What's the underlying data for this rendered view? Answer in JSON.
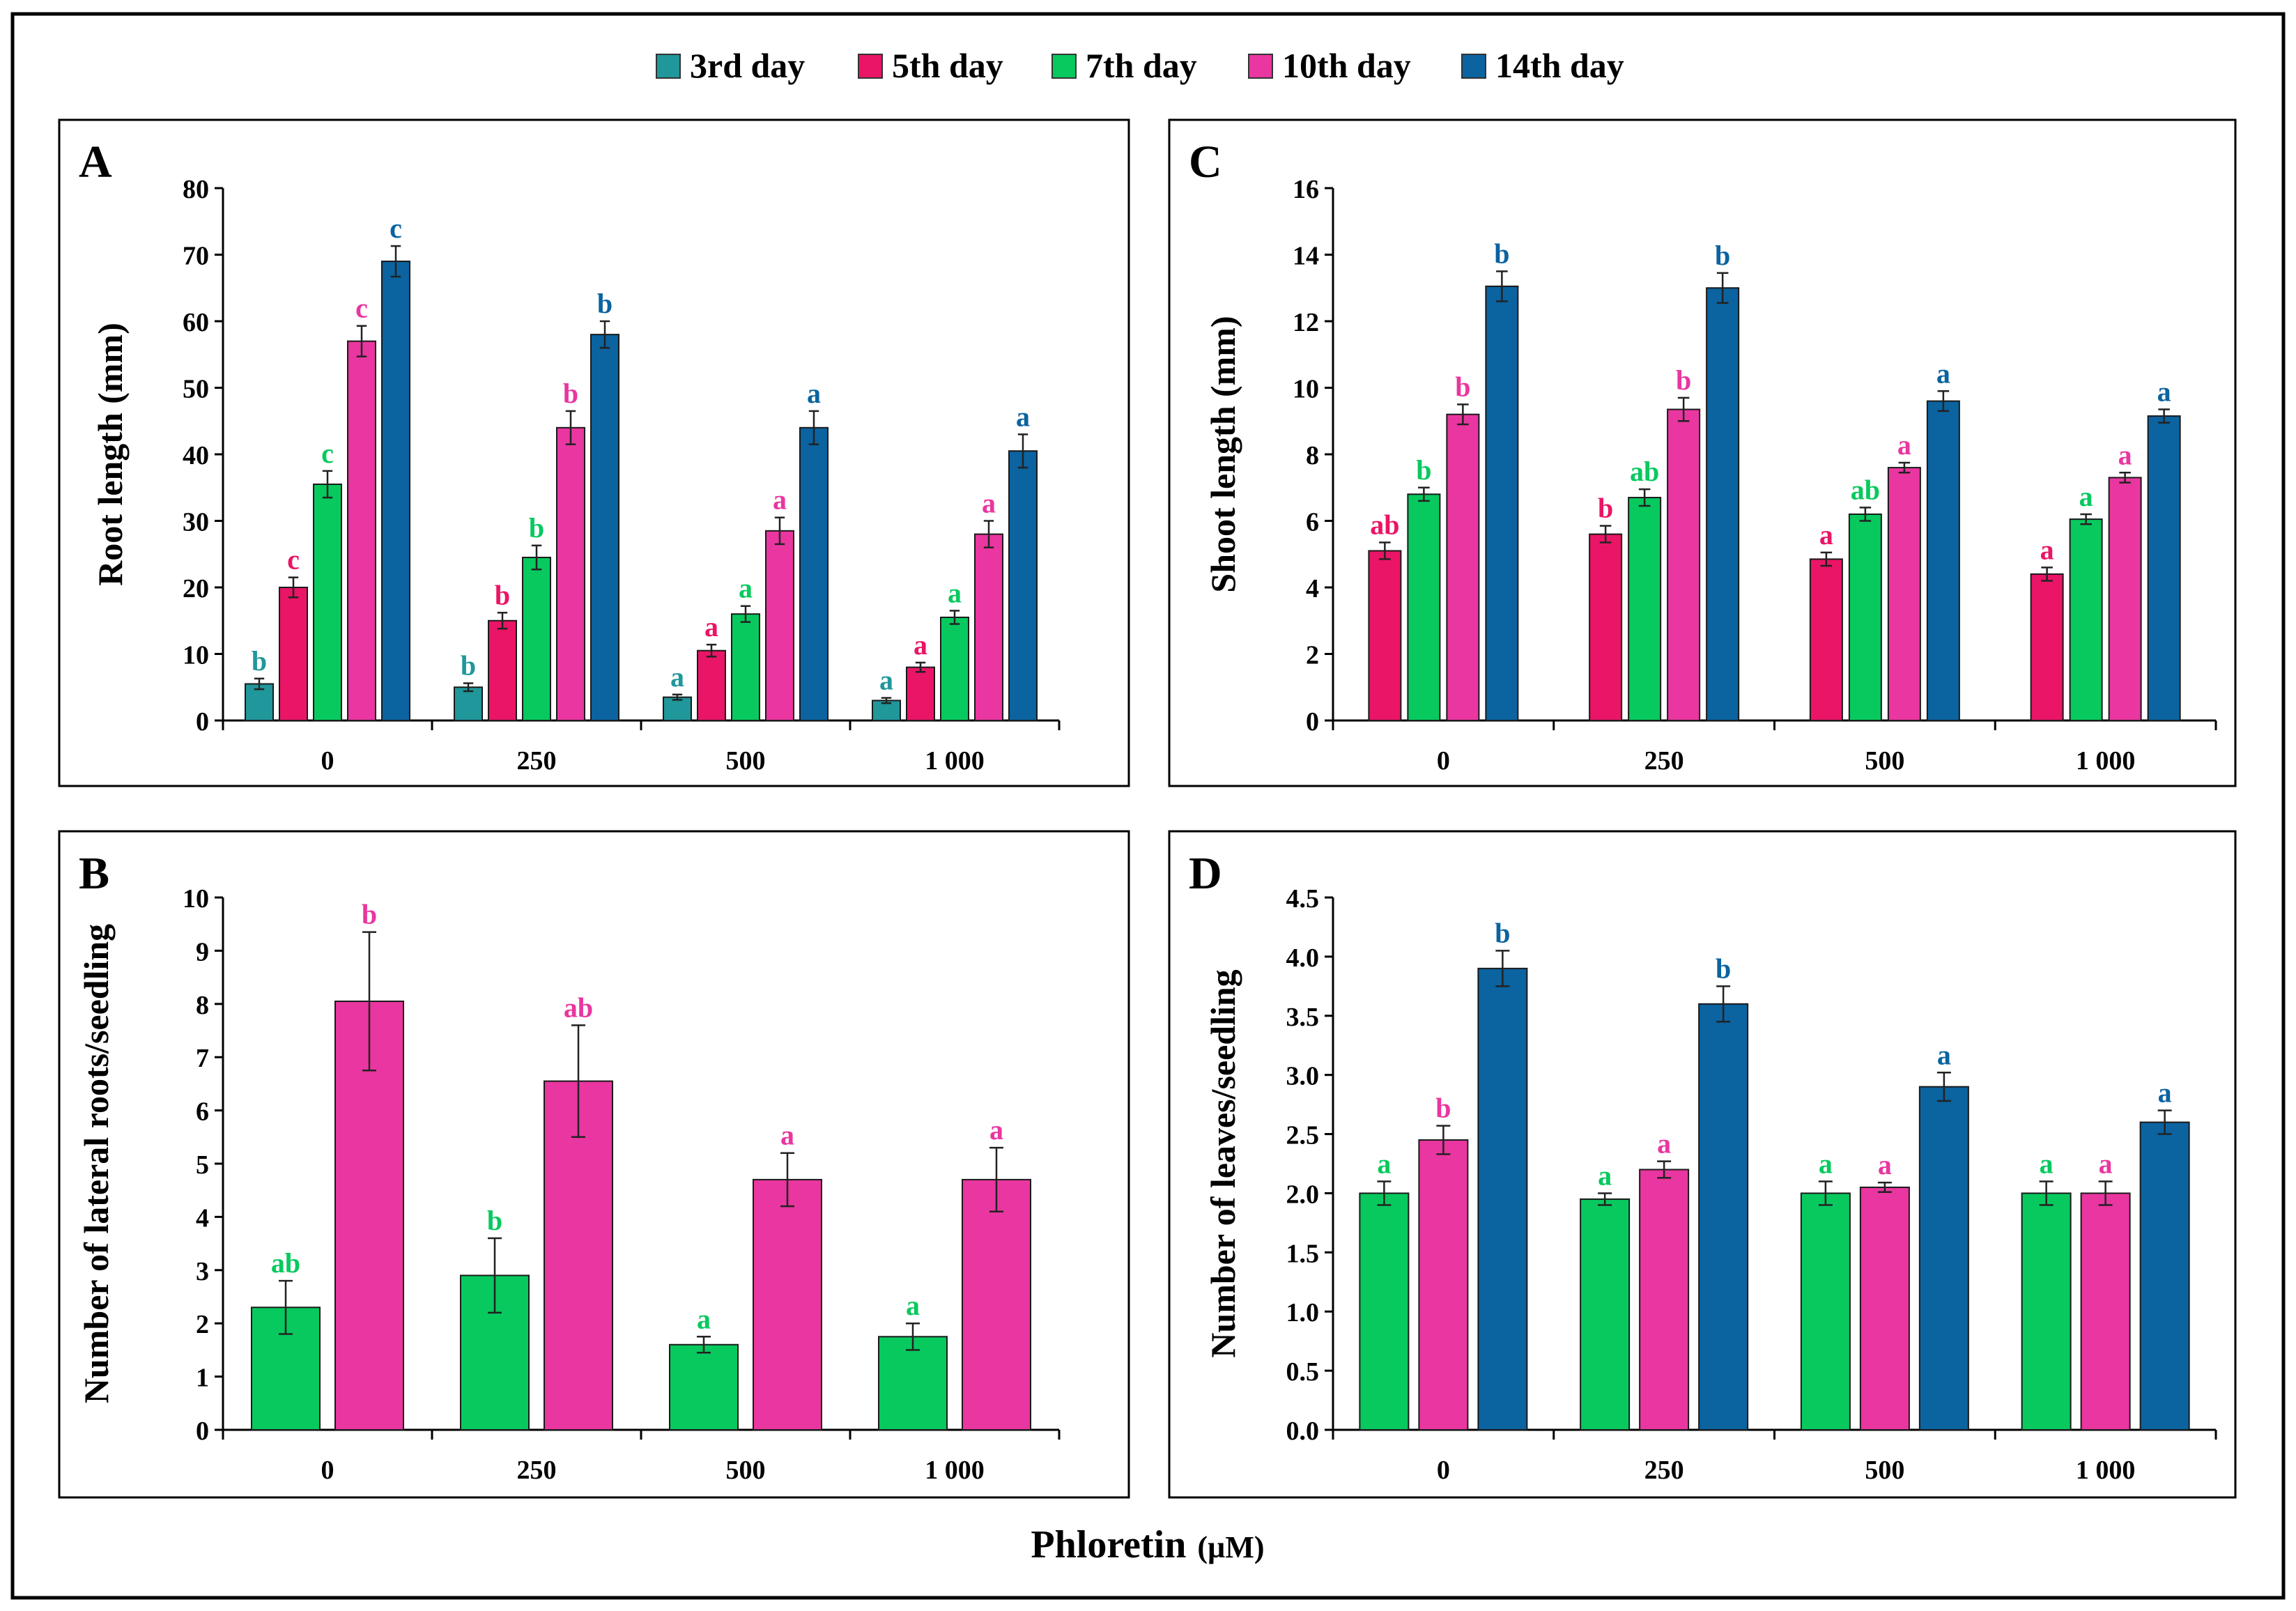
{
  "figure": {
    "xlabel_main": "Phloretin",
    "xlabel_unit": "(µM)"
  },
  "legend": [
    {
      "label": "3rd day",
      "color": "#20979b"
    },
    {
      "label": "5th day",
      "color": "#ea1566"
    },
    {
      "label": "7th day",
      "color": "#08c95e"
    },
    {
      "label": "10th day",
      "color": "#ea36a0"
    },
    {
      "label": "14th day",
      "color": "#0b63a0"
    }
  ],
  "chart_data": [
    {
      "panel": "A",
      "type": "bar",
      "ylabel": "Root length (mm)",
      "ylim": [
        0,
        80
      ],
      "yticks": [
        0,
        10,
        20,
        30,
        40,
        50,
        60,
        70,
        80
      ],
      "ytick_labels": [
        "0",
        "10",
        "20",
        "30",
        "40",
        "50",
        "60",
        "70",
        "80"
      ],
      "categories": [
        "0",
        "250",
        "500",
        "1 000"
      ],
      "series": [
        {
          "name": "3rd day",
          "color": "#20979b",
          "values": [
            5.5,
            5.0,
            3.5,
            3.0
          ],
          "errors": [
            0.8,
            0.6,
            0.4,
            0.4
          ],
          "letters": [
            "b",
            "b",
            "a",
            "a"
          ]
        },
        {
          "name": "5th day",
          "color": "#ea1566",
          "values": [
            20.0,
            15.0,
            10.5,
            8.0
          ],
          "errors": [
            1.5,
            1.2,
            0.9,
            0.7
          ],
          "letters": [
            "c",
            "b",
            "a",
            "a"
          ]
        },
        {
          "name": "7th day",
          "color": "#08c95e",
          "values": [
            35.5,
            24.5,
            16.0,
            15.5
          ],
          "errors": [
            2.0,
            1.8,
            1.2,
            1.0
          ],
          "letters": [
            "c",
            "b",
            "a",
            "a"
          ]
        },
        {
          "name": "10th day",
          "color": "#ea36a0",
          "values": [
            57.0,
            44.0,
            28.5,
            28.0
          ],
          "errors": [
            2.3,
            2.5,
            2.0,
            2.0
          ],
          "letters": [
            "c",
            "b",
            "a",
            "a"
          ]
        },
        {
          "name": "14th day",
          "color": "#0b63a0",
          "values": [
            69.0,
            58.0,
            44.0,
            40.5
          ],
          "errors": [
            2.3,
            2.0,
            2.5,
            2.5
          ],
          "letters": [
            "c",
            "b",
            "a",
            "a"
          ]
        }
      ]
    },
    {
      "panel": "B",
      "type": "bar",
      "ylabel": "Number of lateral roots/seedling",
      "ylim": [
        0,
        10
      ],
      "yticks": [
        0,
        1,
        2,
        3,
        4,
        5,
        6,
        7,
        8,
        9,
        10
      ],
      "ytick_labels": [
        "0",
        "1",
        "2",
        "3",
        "4",
        "5",
        "6",
        "7",
        "8",
        "9",
        "10"
      ],
      "categories": [
        "0",
        "250",
        "500",
        "1 000"
      ],
      "series": [
        {
          "name": "7th day",
          "color": "#08c95e",
          "values": [
            2.3,
            2.9,
            1.6,
            1.75
          ],
          "errors": [
            0.5,
            0.7,
            0.15,
            0.25
          ],
          "letters": [
            "ab",
            "b",
            "a",
            "a"
          ]
        },
        {
          "name": "10th day",
          "color": "#ea36a0",
          "values": [
            8.05,
            6.55,
            4.7,
            4.7
          ],
          "errors": [
            1.3,
            1.05,
            0.5,
            0.6
          ],
          "letters": [
            "b",
            "ab",
            "a",
            "a"
          ]
        }
      ]
    },
    {
      "panel": "C",
      "type": "bar",
      "ylabel": "Shoot length (mm)",
      "ylim": [
        0,
        16
      ],
      "yticks": [
        0,
        2,
        4,
        6,
        8,
        10,
        12,
        14,
        16
      ],
      "ytick_labels": [
        "0",
        "2",
        "4",
        "6",
        "8",
        "10",
        "12",
        "14",
        "16"
      ],
      "categories": [
        "0",
        "250",
        "500",
        "1 000"
      ],
      "series": [
        {
          "name": "5th day",
          "color": "#ea1566",
          "values": [
            5.1,
            5.6,
            4.85,
            4.4
          ],
          "errors": [
            0.25,
            0.25,
            0.2,
            0.2
          ],
          "letters": [
            "ab",
            "b",
            "a",
            "a"
          ]
        },
        {
          "name": "7th day",
          "color": "#08c95e",
          "values": [
            6.8,
            6.7,
            6.2,
            6.05
          ],
          "errors": [
            0.2,
            0.25,
            0.2,
            0.15
          ],
          "letters": [
            "b",
            "ab",
            "ab",
            "a"
          ]
        },
        {
          "name": "10th day",
          "color": "#ea36a0",
          "values": [
            9.2,
            9.35,
            7.6,
            7.3
          ],
          "errors": [
            0.3,
            0.35,
            0.15,
            0.15
          ],
          "letters": [
            "b",
            "b",
            "a",
            "a"
          ]
        },
        {
          "name": "14th day",
          "color": "#0b63a0",
          "values": [
            13.05,
            13.0,
            9.6,
            9.15
          ],
          "errors": [
            0.45,
            0.45,
            0.3,
            0.2
          ],
          "letters": [
            "b",
            "b",
            "a",
            "a"
          ]
        }
      ]
    },
    {
      "panel": "D",
      "type": "bar",
      "ylabel": "Number of leaves/seedling",
      "ylim": [
        0,
        4.5
      ],
      "yticks": [
        0,
        0.5,
        1,
        1.5,
        2,
        2.5,
        3,
        3.5,
        4,
        4.5
      ],
      "ytick_labels": [
        "0.0",
        "0.5",
        "1.0",
        "1.5",
        "2.0",
        "2.5",
        "3.0",
        "3.5",
        "4.0",
        "4.5"
      ],
      "categories": [
        "0",
        "250",
        "500",
        "1 000"
      ],
      "series": [
        {
          "name": "7th day",
          "color": "#08c95e",
          "values": [
            2.0,
            1.95,
            2.0,
            2.0
          ],
          "errors": [
            0.1,
            0.05,
            0.1,
            0.1
          ],
          "letters": [
            "a",
            "a",
            "a",
            "a"
          ]
        },
        {
          "name": "10th day",
          "color": "#ea36a0",
          "values": [
            2.45,
            2.2,
            2.05,
            2.0
          ],
          "errors": [
            0.12,
            0.07,
            0.04,
            0.1
          ],
          "letters": [
            "b",
            "a",
            "a",
            "a"
          ]
        },
        {
          "name": "14th day",
          "color": "#0b63a0",
          "values": [
            3.9,
            3.6,
            2.9,
            2.6
          ],
          "errors": [
            0.15,
            0.15,
            0.12,
            0.1
          ],
          "letters": [
            "b",
            "b",
            "a",
            "a"
          ]
        }
      ]
    }
  ]
}
